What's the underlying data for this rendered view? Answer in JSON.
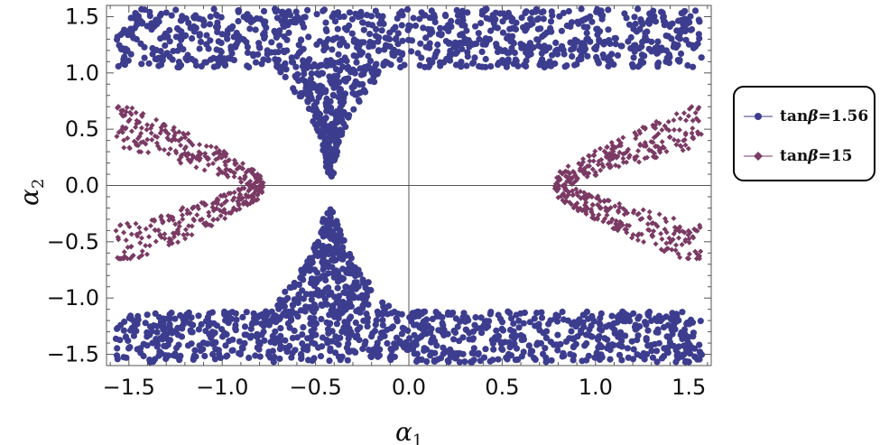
{
  "chart_data": {
    "type": "scatter",
    "xlabel": "α",
    "xlabel_sub": "1",
    "ylabel": "α",
    "ylabel_sub": "2",
    "xlim": [
      -1.62,
      1.62
    ],
    "ylim": [
      -1.6,
      1.6
    ],
    "xticks": [
      -1.5,
      -1.0,
      -0.5,
      0.0,
      0.5,
      1.0,
      1.5
    ],
    "xtick_labels": [
      "−1.5",
      "−1.0",
      "−0.5",
      "0.0",
      "0.5",
      "1.0",
      "1.5"
    ],
    "yticks": [
      -1.5,
      -1.0,
      -0.5,
      0.0,
      0.5,
      1.0,
      1.5
    ],
    "ytick_labels": [
      "−1.5",
      "−1.0",
      "−0.5",
      "0.0",
      "0.5",
      "1.0",
      "1.5"
    ],
    "legend_position": "right",
    "series": [
      {
        "name_prefix": "tan",
        "name_greek": "β",
        "name_suffix": "=1.56",
        "marker": "circle",
        "color": "#3d3d8f",
        "regions": [
          {
            "shape": "band",
            "x": [
              -1.57,
              1.57
            ],
            "y": [
              1.05,
              1.57
            ],
            "density": 900
          },
          {
            "shape": "band",
            "x": [
              -1.57,
              1.57
            ],
            "y": [
              -1.57,
              -1.12
            ],
            "density": 900
          },
          {
            "shape": "funnel",
            "center": -0.42,
            "y": [
              0.05,
              1.1
            ],
            "density": 300
          },
          {
            "shape": "funnel",
            "center": -0.42,
            "y": [
              -1.15,
              -0.2
            ],
            "density": 300
          }
        ]
      },
      {
        "name_prefix": "tan",
        "name_greek": "β",
        "name_suffix": "=15",
        "marker": "diamond",
        "color": "#7a3a64",
        "regions": [
          {
            "shape": "fork",
            "side": "left",
            "x": [
              -1.57,
              -0.78
            ],
            "y": [
              -0.65,
              0.7
            ],
            "density": 420
          },
          {
            "shape": "fork",
            "side": "right",
            "x": [
              0.78,
              1.57
            ],
            "y": [
              -0.65,
              0.7
            ],
            "density": 420
          }
        ]
      }
    ]
  }
}
